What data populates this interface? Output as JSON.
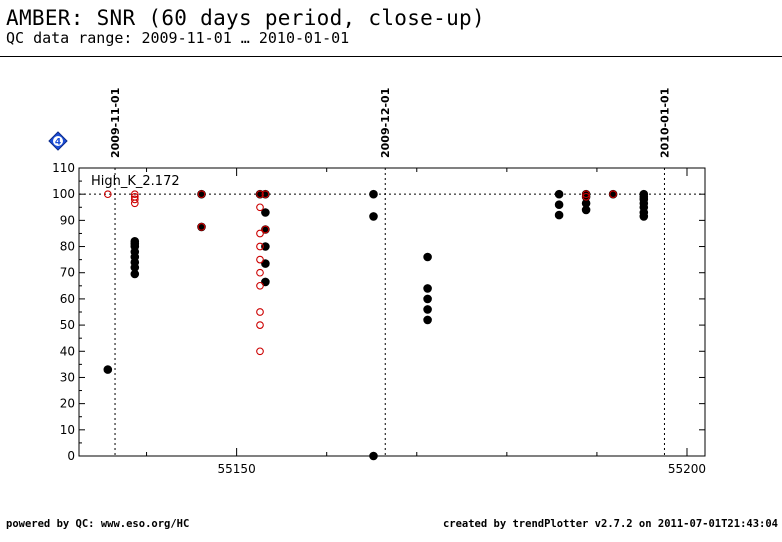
{
  "header": {
    "title": "AMBER: SNR (60 days period, close-up)",
    "subtitle": "QC data range: 2009-11-01 … 2010-01-01"
  },
  "footer": {
    "left": "powered by QC: www.eso.org/HC",
    "right": "created by trendPlotter v2.7.2 on 2011-07-01T21:43:04"
  },
  "badge": {
    "text": "4",
    "icon": "diamond-badge-icon",
    "color": "#1d4fd8"
  },
  "chart_data": {
    "type": "scatter",
    "title": "",
    "panel_label": "High_K_2.172",
    "xlabel": "",
    "ylabel": "",
    "xlim": [
      55132.5,
      55202
    ],
    "ylim": [
      0,
      110
    ],
    "x_ticks": [
      55150,
      55200
    ],
    "y_ticks": [
      0,
      10,
      20,
      30,
      40,
      50,
      60,
      70,
      80,
      90,
      100,
      110
    ],
    "reference_line": {
      "y": 100,
      "style": "dotted"
    },
    "date_markers": [
      {
        "label": "2009-11-01",
        "x": 55136.5
      },
      {
        "label": "2009-12-01",
        "x": 55166.5
      },
      {
        "label": "2010-01-01",
        "x": 55197.5
      }
    ],
    "colors": {
      "filled": "#000000",
      "open": "#cc0000"
    },
    "series": [
      {
        "marker": "filled-black",
        "points": [
          [
            55135.7,
            33
          ],
          [
            55138.7,
            69.5
          ],
          [
            55138.7,
            72
          ],
          [
            55138.7,
            74
          ],
          [
            55138.7,
            76
          ],
          [
            55138.7,
            78
          ],
          [
            55138.7,
            80
          ],
          [
            55138.7,
            81
          ],
          [
            55138.7,
            82
          ],
          [
            55146.1,
            87.5
          ],
          [
            55146.1,
            100
          ],
          [
            55152.6,
            100
          ],
          [
            55153.2,
            66.5
          ],
          [
            55153.2,
            73.5
          ],
          [
            55153.2,
            80
          ],
          [
            55153.2,
            86.5
          ],
          [
            55153.2,
            93
          ],
          [
            55153.2,
            100
          ],
          [
            55165.2,
            0
          ],
          [
            55165.2,
            91.5
          ],
          [
            55165.2,
            100
          ],
          [
            55171.2,
            52
          ],
          [
            55171.2,
            56
          ],
          [
            55171.2,
            60
          ],
          [
            55171.2,
            64
          ],
          [
            55171.2,
            76
          ],
          [
            55185.8,
            92
          ],
          [
            55185.8,
            96
          ],
          [
            55185.8,
            100
          ],
          [
            55188.8,
            94
          ],
          [
            55188.8,
            96.5
          ],
          [
            55188.8,
            99
          ],
          [
            55188.8,
            100
          ],
          [
            55191.8,
            100
          ],
          [
            55195.2,
            91.5
          ],
          [
            55195.2,
            93
          ],
          [
            55195.2,
            95
          ],
          [
            55195.2,
            96.5
          ],
          [
            55195.2,
            98
          ],
          [
            55195.2,
            99
          ],
          [
            55195.2,
            100
          ]
        ]
      },
      {
        "marker": "open-red",
        "points": [
          [
            55135.7,
            100
          ],
          [
            55138.7,
            96.5
          ],
          [
            55138.7,
            98
          ],
          [
            55138.7,
            99
          ],
          [
            55138.7,
            100
          ],
          [
            55146.1,
            87.5
          ],
          [
            55146.1,
            100
          ],
          [
            55152.6,
            40
          ],
          [
            55152.6,
            50
          ],
          [
            55152.6,
            55
          ],
          [
            55152.6,
            65
          ],
          [
            55152.6,
            70
          ],
          [
            55152.6,
            75
          ],
          [
            55152.6,
            80
          ],
          [
            55152.6,
            85
          ],
          [
            55152.6,
            95
          ],
          [
            55152.6,
            100
          ],
          [
            55153.2,
            86.5
          ],
          [
            55153.2,
            100
          ],
          [
            55188.8,
            99
          ],
          [
            55188.8,
            100
          ],
          [
            55191.8,
            100
          ]
        ]
      }
    ]
  }
}
